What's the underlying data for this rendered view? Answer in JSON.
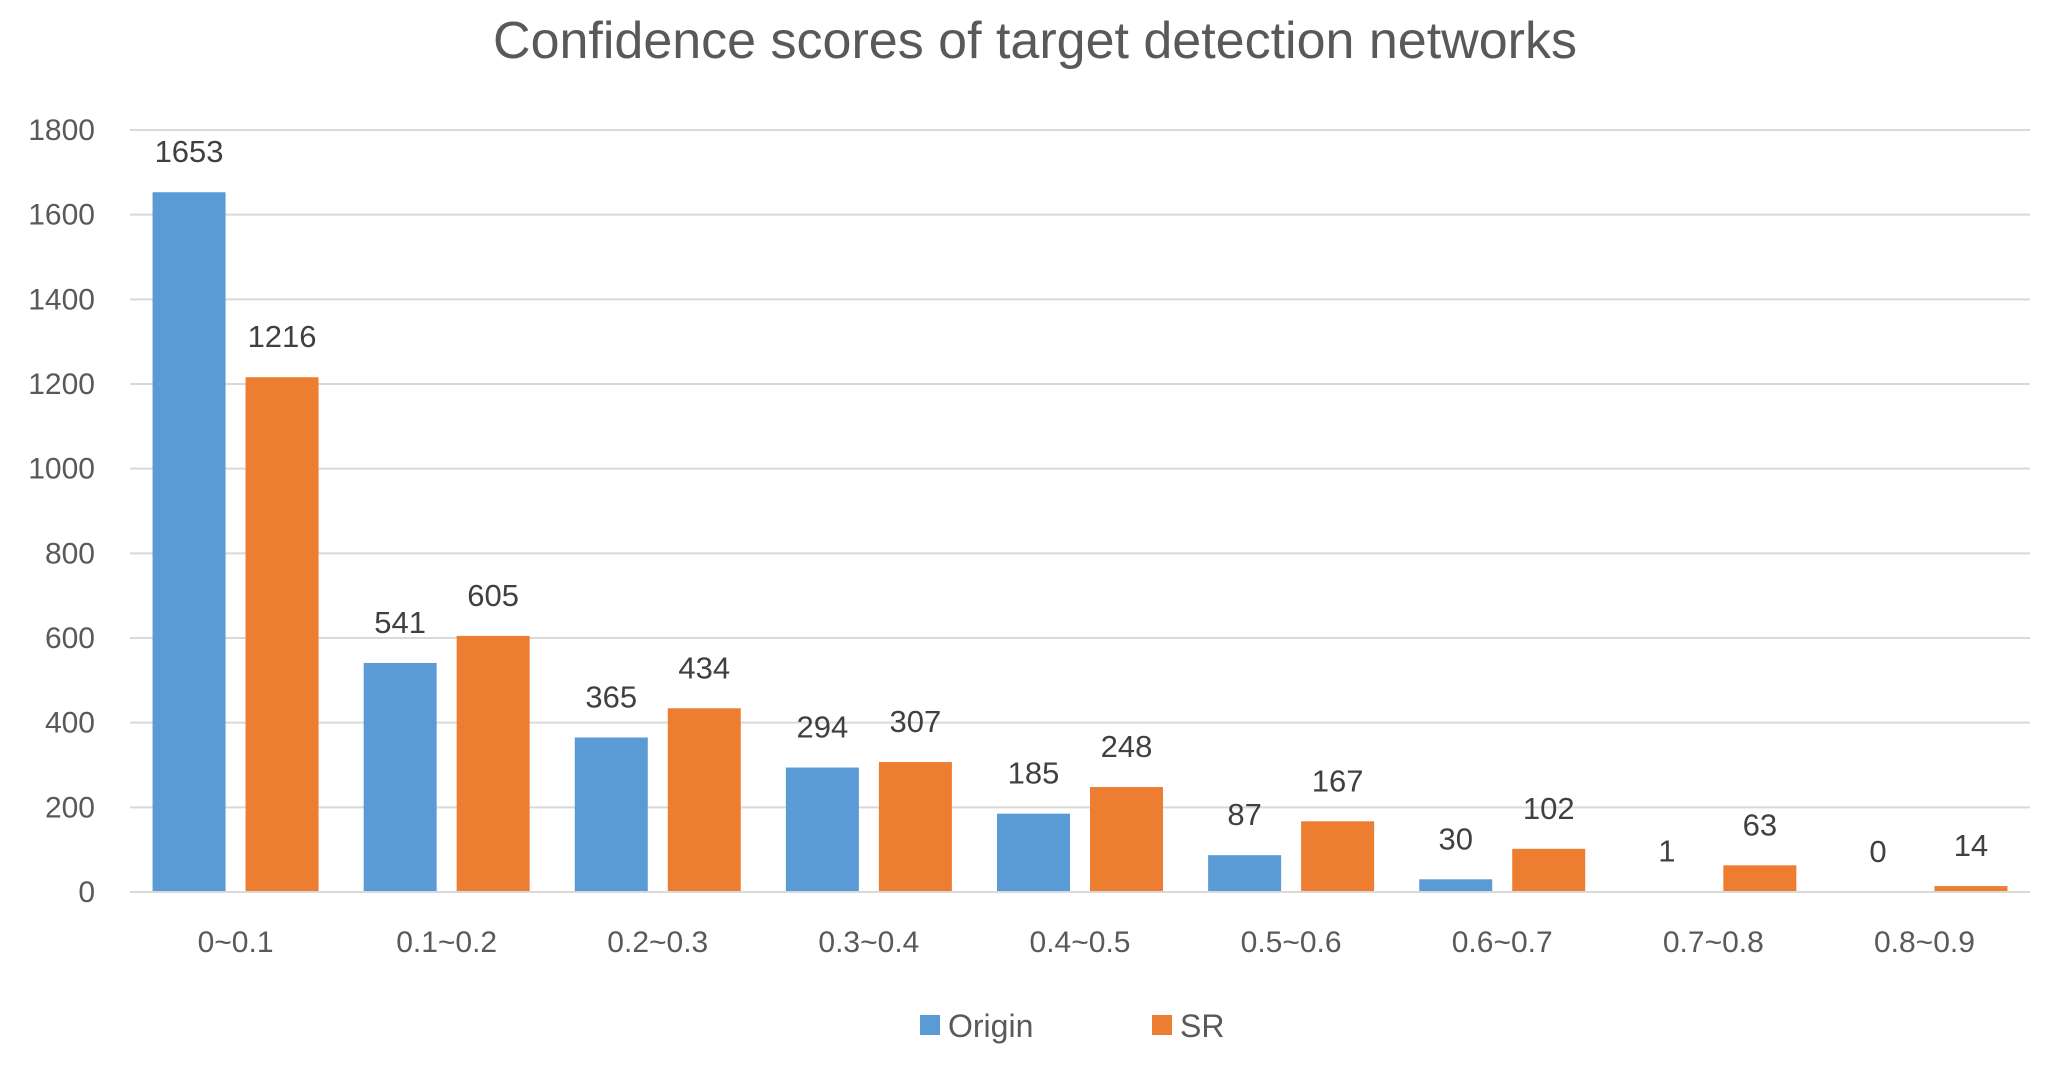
{
  "chart_data": {
    "type": "bar",
    "title": "Confidence scores of target detection networks",
    "xlabel": "",
    "ylabel": "",
    "categories": [
      "0~0.1",
      "0.1~0.2",
      "0.2~0.3",
      "0.3~0.4",
      "0.4~0.5",
      "0.5~0.6",
      "0.6~0.7",
      "0.7~0.8",
      "0.8~0.9"
    ],
    "series": [
      {
        "name": "Origin",
        "color": "#5b9bd5",
        "values": [
          1653,
          541,
          365,
          294,
          185,
          87,
          30,
          1,
          0
        ]
      },
      {
        "name": "SR",
        "color": "#ed7d31",
        "values": [
          1216,
          605,
          434,
          307,
          248,
          167,
          102,
          63,
          14
        ]
      }
    ],
    "ylim": [
      0,
      1800
    ],
    "yticks": [
      0,
      200,
      400,
      600,
      800,
      1000,
      1200,
      1400,
      1600,
      1800
    ],
    "grid": true,
    "legend_position": "bottom-center",
    "data_labels": true
  }
}
